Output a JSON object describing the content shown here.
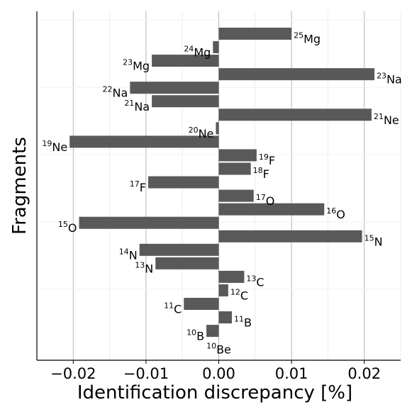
{
  "chart_data": {
    "type": "bar",
    "orientation": "horizontal",
    "xlabel": "Identification discrepancy [%]",
    "ylabel": "Fragments",
    "xlim": [
      -0.025,
      0.025
    ],
    "x_ticks": [
      -0.02,
      -0.01,
      0.0,
      0.01,
      0.02
    ],
    "x_tick_labels": [
      "−0.02",
      "−0.01",
      "0.00",
      "0.01",
      "0.02"
    ],
    "grid": "vertical major and minor lines",
    "bar_color": "#595959",
    "categories": [
      {
        "mass": "25",
        "element": "Mg"
      },
      {
        "mass": "24",
        "element": "Mg"
      },
      {
        "mass": "23",
        "element": "Mg"
      },
      {
        "mass": "23",
        "element": "Na"
      },
      {
        "mass": "22",
        "element": "Na"
      },
      {
        "mass": "21",
        "element": "Na"
      },
      {
        "mass": "21",
        "element": "Ne"
      },
      {
        "mass": "20",
        "element": "Ne"
      },
      {
        "mass": "19",
        "element": "Ne"
      },
      {
        "mass": "19",
        "element": "F"
      },
      {
        "mass": "18",
        "element": "F"
      },
      {
        "mass": "17",
        "element": "F"
      },
      {
        "mass": "17",
        "element": "O"
      },
      {
        "mass": "16",
        "element": "O"
      },
      {
        "mass": "15",
        "element": "O"
      },
      {
        "mass": "15",
        "element": "N"
      },
      {
        "mass": "14",
        "element": "N"
      },
      {
        "mass": "13",
        "element": "N"
      },
      {
        "mass": "13",
        "element": "C"
      },
      {
        "mass": "12",
        "element": "C"
      },
      {
        "mass": "11",
        "element": "C"
      },
      {
        "mass": "11",
        "element": "B"
      },
      {
        "mass": "10",
        "element": "B"
      },
      {
        "mass": "10",
        "element": "Be"
      }
    ],
    "values": [
      0.01,
      -0.0008,
      -0.0092,
      0.0214,
      -0.0122,
      -0.0092,
      0.021,
      -0.0004,
      -0.0205,
      0.0052,
      0.0044,
      -0.0097,
      0.0048,
      0.0145,
      -0.0192,
      0.0197,
      -0.0109,
      -0.0087,
      0.0035,
      0.0013,
      -0.0048,
      0.0018,
      -0.0017,
      0.0
    ]
  }
}
